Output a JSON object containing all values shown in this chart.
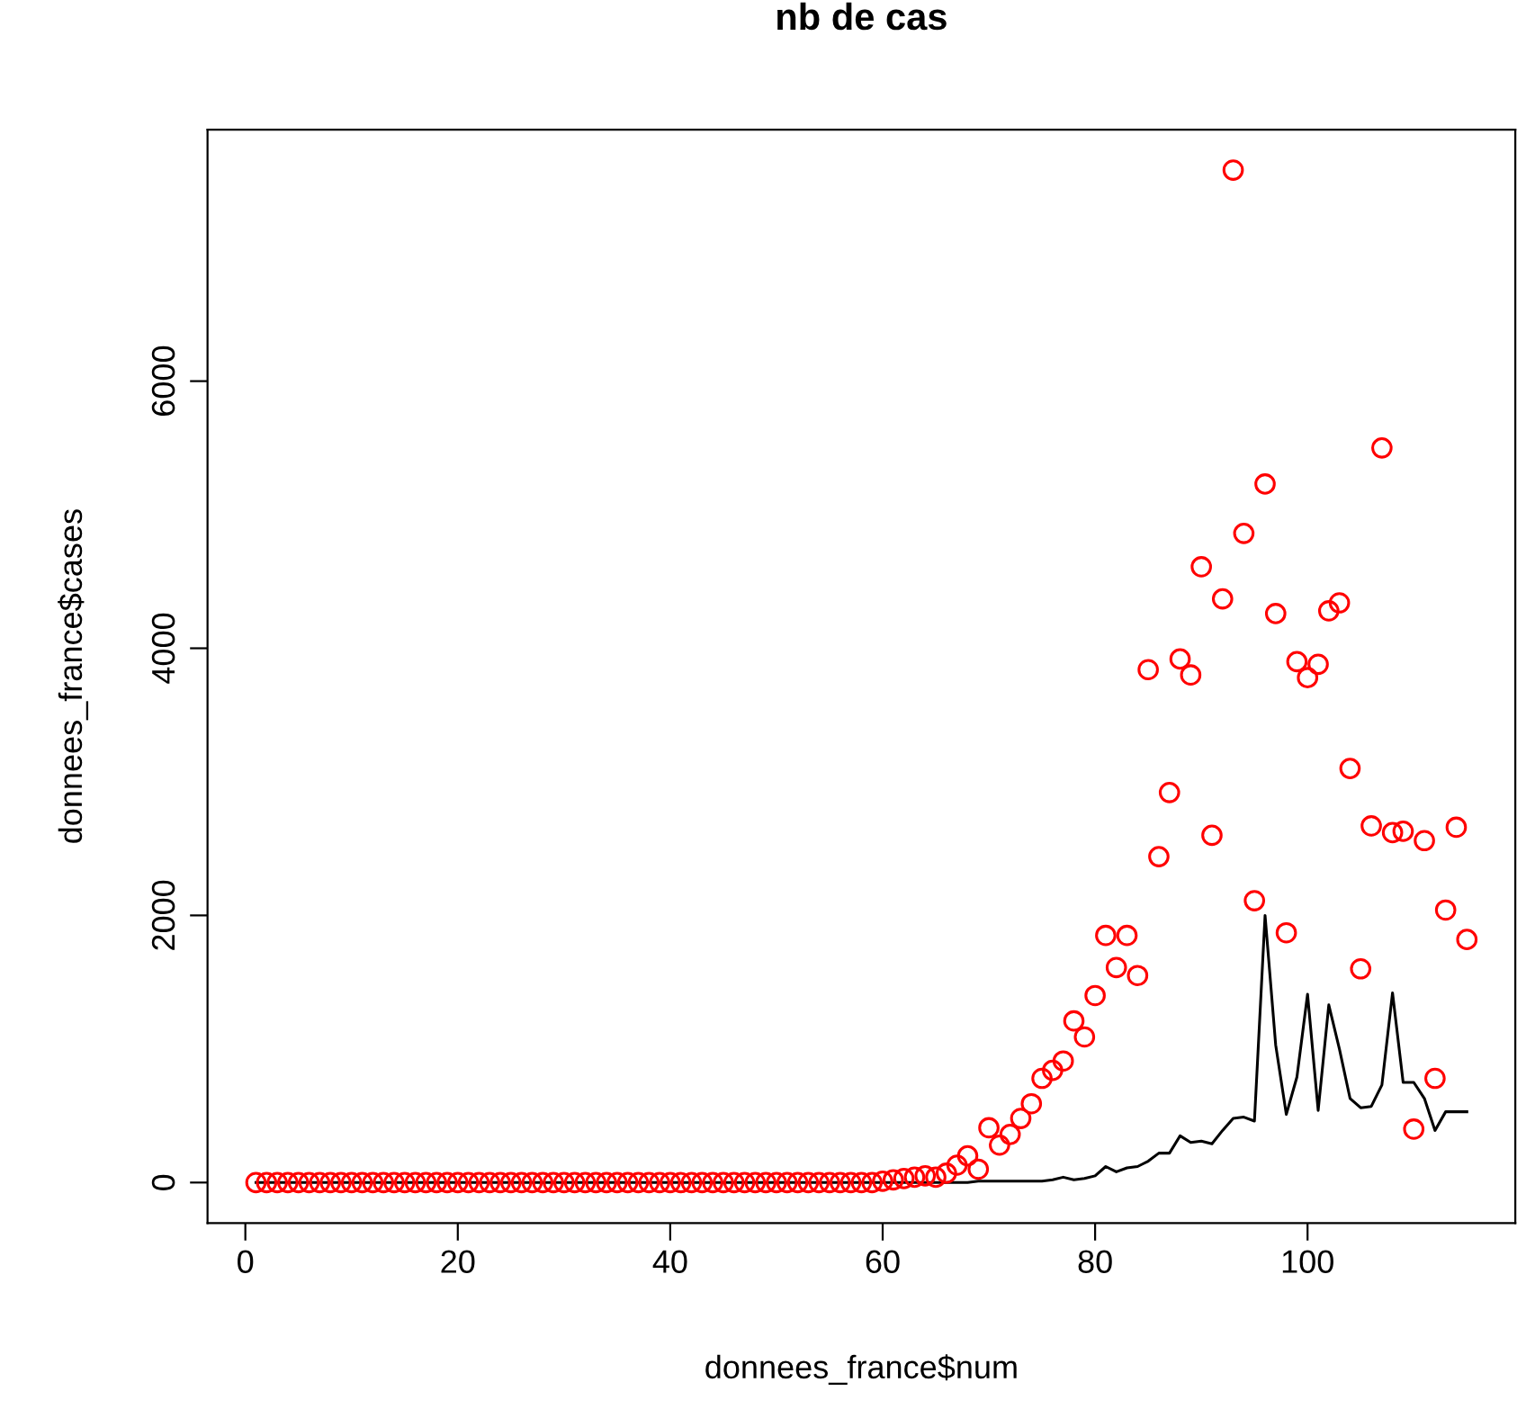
{
  "chart_data": {
    "type": "scatter",
    "title": "nb de cas",
    "xlabel": "donnees_france$num",
    "ylabel": "donnees_france$cases",
    "x": [
      1,
      2,
      3,
      4,
      5,
      6,
      7,
      8,
      9,
      10,
      11,
      12,
      13,
      14,
      15,
      16,
      17,
      18,
      19,
      20,
      21,
      22,
      23,
      24,
      25,
      26,
      27,
      28,
      29,
      30,
      31,
      32,
      33,
      34,
      35,
      36,
      37,
      38,
      39,
      40,
      41,
      42,
      43,
      44,
      45,
      46,
      47,
      48,
      49,
      50,
      51,
      52,
      53,
      54,
      55,
      56,
      57,
      58,
      59,
      60,
      61,
      62,
      63,
      64,
      65,
      66,
      67,
      68,
      69,
      70,
      71,
      72,
      73,
      74,
      75,
      76,
      77,
      78,
      79,
      80,
      81,
      82,
      83,
      84,
      85,
      86,
      87,
      88,
      89,
      90,
      91,
      92,
      93,
      94,
      95,
      96,
      97,
      98,
      99,
      100,
      101,
      102,
      103,
      104,
      105,
      106,
      107,
      108,
      109,
      110,
      111,
      112,
      113,
      114,
      115
    ],
    "series": [
      {
        "color": "#ff0000",
        "marker": "circle",
        "values": [
          0,
          0,
          0,
          0,
          0,
          0,
          0,
          0,
          0,
          0,
          0,
          0,
          0,
          0,
          0,
          0,
          0,
          0,
          0,
          0,
          0,
          0,
          0,
          0,
          0,
          0,
          0,
          0,
          0,
          0,
          0,
          0,
          0,
          0,
          0,
          0,
          0,
          0,
          0,
          0,
          0,
          0,
          0,
          0,
          0,
          0,
          0,
          0,
          0,
          0,
          0,
          0,
          0,
          0,
          0,
          0,
          0,
          0,
          0,
          10,
          20,
          30,
          40,
          50,
          40,
          70,
          130,
          200,
          100,
          410,
          280,
          360,
          480,
          590,
          780,
          840,
          910,
          1210,
          1090,
          1400,
          1850,
          1610,
          1850,
          1550,
          3840,
          2440,
          2920,
          3920,
          3800,
          4610,
          2600,
          4370,
          7580,
          4860,
          2110,
          5230,
          4260,
          1870,
          3900,
          3780,
          3880,
          4280,
          4340,
          3100,
          1600,
          2670,
          5500,
          2620,
          2630,
          400,
          2560,
          780,
          2040,
          2660,
          1820
        ]
      },
      {
        "type": "line",
        "color": "#000000",
        "marker": "none",
        "line_style": "solid",
        "values": [
          0,
          0,
          0,
          0,
          0,
          0,
          0,
          0,
          0,
          0,
          0,
          0,
          0,
          0,
          0,
          0,
          0,
          0,
          0,
          0,
          0,
          0,
          0,
          0,
          0,
          0,
          0,
          0,
          0,
          0,
          0,
          0,
          0,
          0,
          0,
          0,
          0,
          0,
          0,
          0,
          0,
          0,
          0,
          0,
          0,
          0,
          0,
          0,
          0,
          0,
          0,
          0,
          0,
          0,
          0,
          0,
          0,
          0,
          0,
          0,
          0,
          0,
          0,
          0,
          0,
          0,
          0,
          0,
          10,
          10,
          10,
          10,
          10,
          10,
          10,
          20,
          40,
          20,
          30,
          50,
          120,
          80,
          110,
          120,
          160,
          220,
          220,
          350,
          300,
          310,
          290,
          390,
          480,
          490,
          460,
          2000,
          1030,
          510,
          790,
          1410,
          540,
          1330,
          1000,
          630,
          560,
          570,
          730,
          1420,
          750,
          750,
          630,
          390,
          530,
          530,
          530
        ]
      }
    ],
    "xlim": [
      -3.56,
      119.56
    ],
    "ylim": [
      -303,
      7883
    ],
    "xticks": [
      0,
      20,
      40,
      60,
      80,
      100
    ],
    "yticks": [
      0,
      2000,
      4000,
      6000
    ],
    "grid": false
  }
}
